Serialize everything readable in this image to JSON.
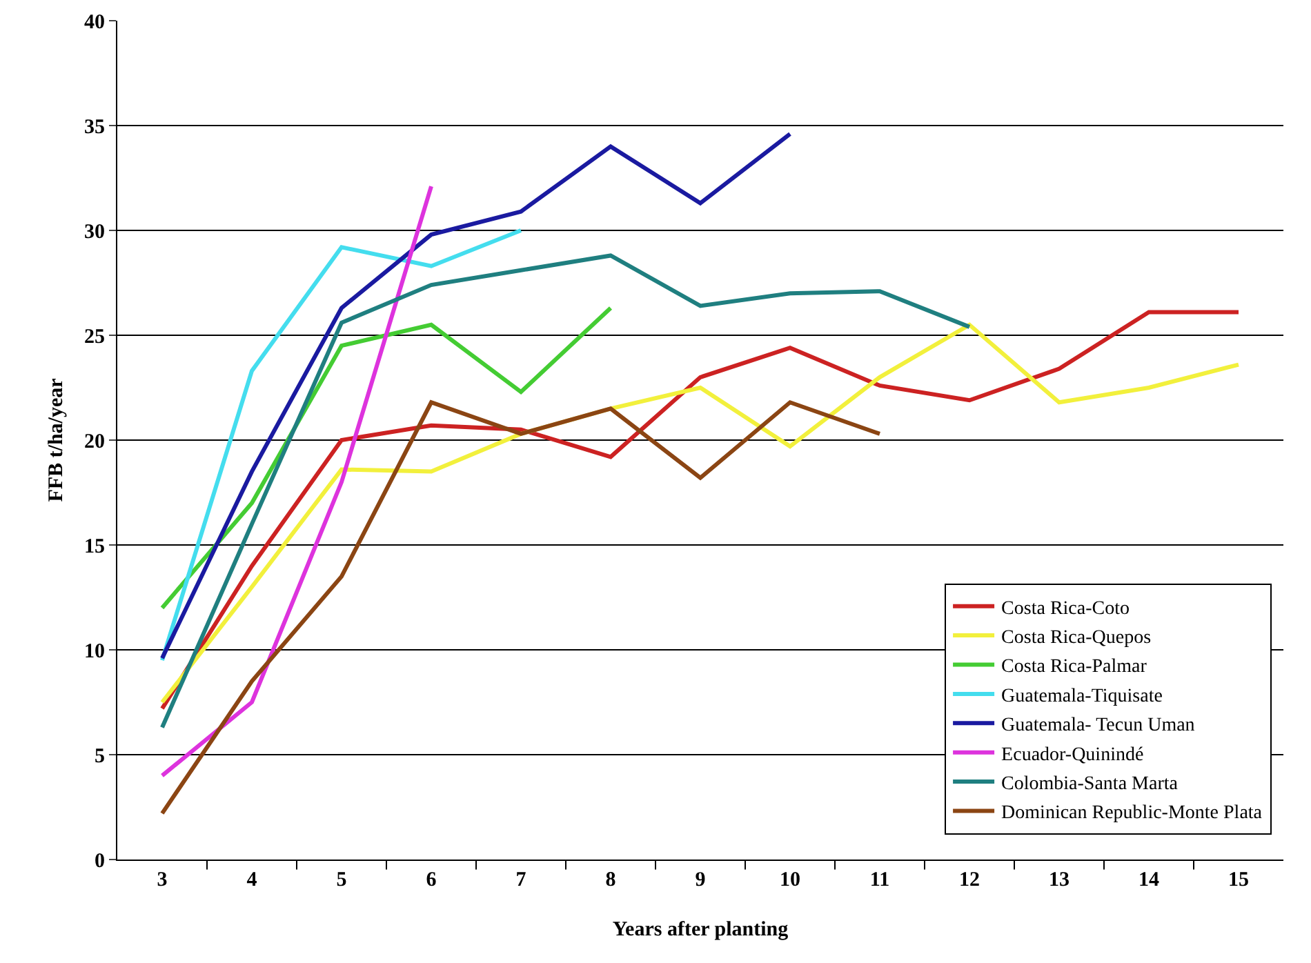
{
  "chart_data": {
    "type": "line",
    "xlabel": "Years after planting",
    "ylabel": "FFB t/ha/year",
    "categories": [
      "3",
      "4",
      "5",
      "6",
      "7",
      "8",
      "9",
      "10",
      "11",
      "12",
      "13",
      "14",
      "15"
    ],
    "ylim": [
      0,
      40
    ],
    "yticks": [
      0,
      5,
      10,
      15,
      20,
      25,
      30,
      35,
      40
    ],
    "grid": "y",
    "legend": "bottom right",
    "marker": "none",
    "line_style": "solid",
    "series": [
      {
        "name": "Costa Rica-Coto",
        "color": "#cc2222",
        "values": [
          7.2,
          14,
          20,
          20.7,
          20.5,
          19.2,
          23,
          24.4,
          22.6,
          21.9,
          23.4,
          26.1,
          26.1
        ]
      },
      {
        "name": "Costa Rica-Quepos",
        "color": "#f2f03c",
        "values": [
          7.5,
          13,
          18.6,
          18.5,
          20.3,
          21.5,
          22.5,
          19.7,
          23,
          25.5,
          21.8,
          22.5,
          23.6
        ]
      },
      {
        "name": "Costa Rica-Palmar",
        "color": "#44cc33",
        "values": [
          12,
          17,
          24.5,
          25.5,
          22.3,
          26.3,
          null,
          null,
          null,
          null,
          null,
          null,
          null
        ]
      },
      {
        "name": "Guatemala-Tiquisate",
        "color": "#44ddee",
        "values": [
          9.5,
          23.3,
          29.2,
          28.3,
          30,
          null,
          null,
          null,
          null,
          null,
          null,
          null,
          null
        ]
      },
      {
        "name": "Guatemala- Tecun Uman",
        "color": "#1a1aa0",
        "values": [
          9.6,
          18.5,
          26.3,
          29.8,
          30.9,
          34,
          31.3,
          34.6,
          null,
          null,
          null,
          null,
          null
        ]
      },
      {
        "name": "Ecuador-Quinindé",
        "color": "#dd33dd",
        "values": [
          4,
          7.5,
          18,
          32.1,
          null,
          null,
          null,
          null,
          null,
          null,
          null,
          null,
          null
        ]
      },
      {
        "name": "Colombia-Santa Marta",
        "color": "#1f7f80",
        "values": [
          6.3,
          16,
          25.6,
          27.4,
          28.1,
          28.8,
          26.4,
          27,
          27.1,
          25.4,
          null,
          null,
          null
        ]
      },
      {
        "name": "Dominican Republic-Monte Plata",
        "color": "#8b4513",
        "values": [
          2.2,
          8.5,
          13.5,
          21.8,
          20.3,
          21.5,
          18.2,
          21.8,
          20.3,
          null,
          null,
          null,
          null
        ]
      }
    ]
  }
}
